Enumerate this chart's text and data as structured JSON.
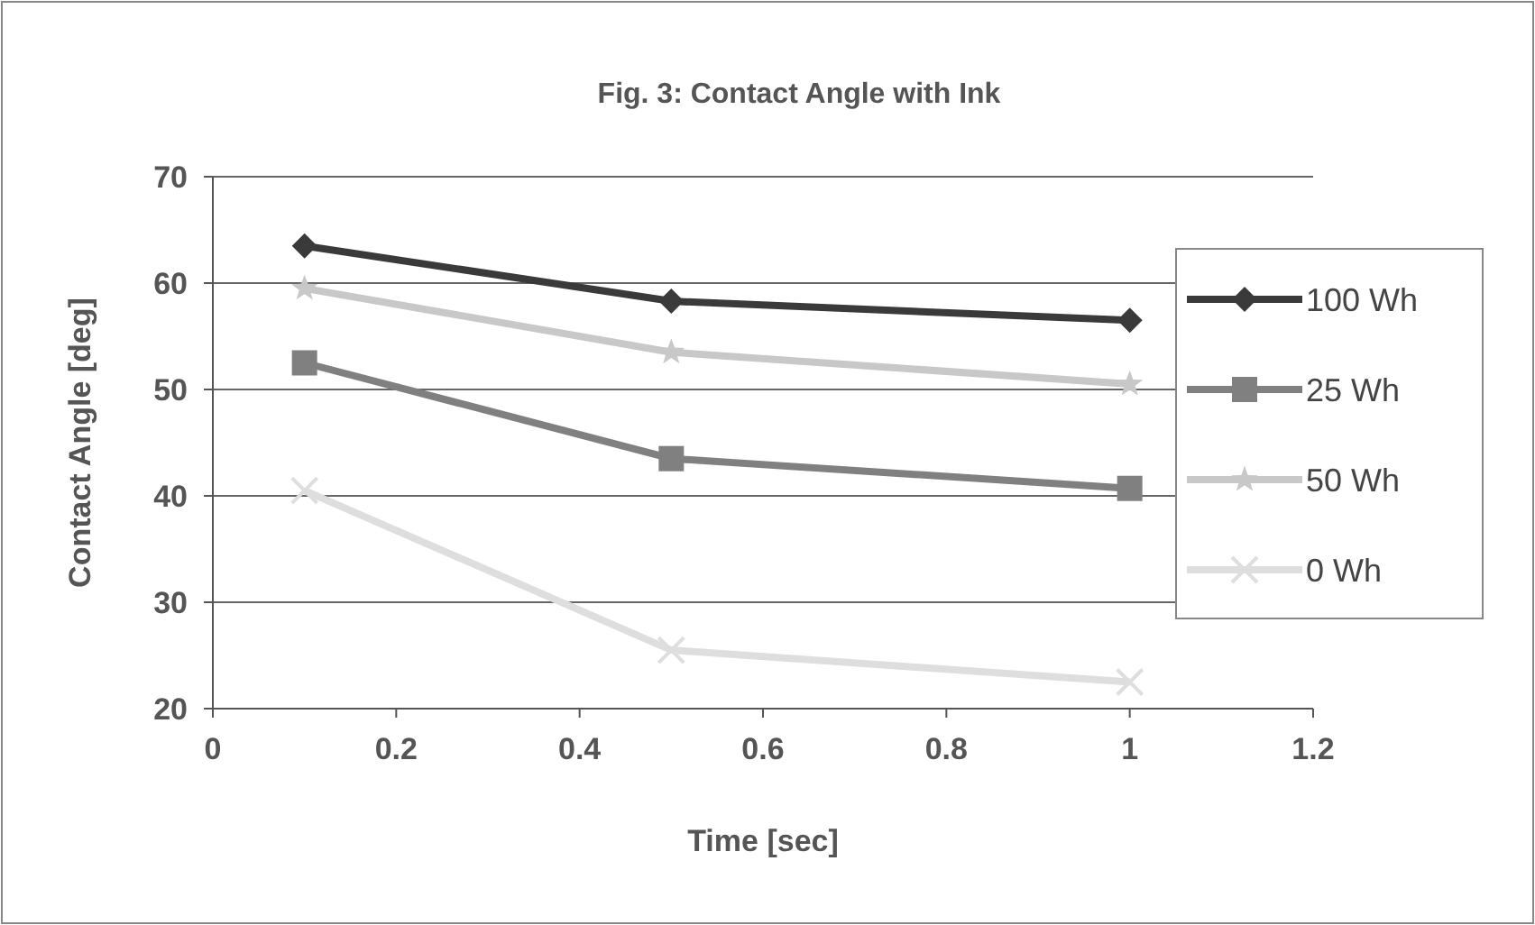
{
  "chart_data": {
    "type": "line",
    "title": "Fig. 3: Contact Angle with Ink",
    "xlabel": "Time [sec]",
    "ylabel": "Contact Angle [deg]",
    "x": [
      0.1,
      0.5,
      1
    ],
    "series": [
      {
        "name": "100 Wh",
        "color": "#3a3a3a",
        "marker": "diamond",
        "values": [
          63.5,
          58.3,
          56.5
        ]
      },
      {
        "name": "25 Wh",
        "color": "#808080",
        "marker": "square",
        "values": [
          52.5,
          43.5,
          40.7
        ]
      },
      {
        "name": "50 Wh",
        "color": "#c8c8c8",
        "marker": "star",
        "values": [
          59.5,
          53.5,
          50.5
        ]
      },
      {
        "name": "0 Wh",
        "color": "#dedede",
        "marker": "cross",
        "values": [
          40.5,
          25.5,
          22.5
        ]
      }
    ],
    "xlim": [
      0,
      1.2
    ],
    "xticks": [
      0,
      0.2,
      0.4,
      0.6,
      0.8,
      1,
      1.2
    ],
    "ylim": [
      20,
      70
    ],
    "yticks": [
      20,
      30,
      40,
      50,
      60,
      70
    ],
    "grid": "y",
    "legend": "right"
  }
}
